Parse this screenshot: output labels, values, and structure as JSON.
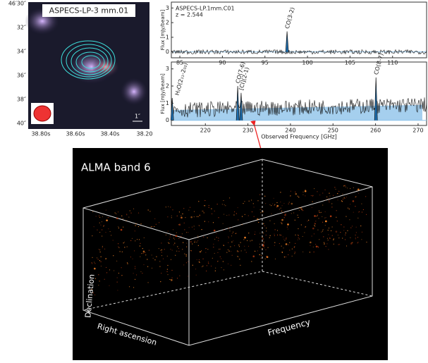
{
  "image_panel": {
    "label": "ASPECS-LP-3 mm.01",
    "dec_ticks": [
      "46′30″",
      "32″",
      "34″",
      "36″",
      "38″",
      "40″"
    ],
    "ra_ticks": [
      "38.80s",
      "38.60s",
      "38.40s",
      "38.20"
    ],
    "scale_label": "1″"
  },
  "spectrum_top": {
    "source": "ASPECS-LP.1mm.C01",
    "redshift": "z = 2.544",
    "ylabel": "Flux [mJy/beam]",
    "xlim": [
      84,
      114
    ],
    "ylim": [
      -0.4,
      3.4
    ],
    "xticks": [
      85,
      90,
      95,
      100,
      105,
      110
    ],
    "yticks": [
      0,
      1,
      2,
      3
    ],
    "lines": [
      {
        "label": "CO(3-2)",
        "x": 97.6,
        "peak": 1.4
      }
    ]
  },
  "spectrum_bottom": {
    "ylabel": "Flux [mJy/beam]",
    "xlabel": "Observed Frequency [GHz]",
    "xlim": [
      212,
      272
    ],
    "ylim": [
      -0.3,
      3.4
    ],
    "xticks": [
      220,
      230,
      240,
      250,
      260,
      270
    ],
    "yticks": [
      0,
      1,
      2,
      3
    ],
    "continuum": {
      "x": [
        212,
        271
      ],
      "y": [
        0.6,
        0.9
      ]
    },
    "lines": [
      {
        "label": "H₂O(2₁₁-2₀₂)",
        "x": 212.2,
        "peak": 1.3
      },
      {
        "label": "CO(7-6)",
        "x": 227.6,
        "peak": 2.0
      },
      {
        "label": "[CI](2-1)",
        "x": 228.4,
        "peak": 1.6
      },
      {
        "label": "CO(8-7)",
        "x": 260.1,
        "peak": 2.5
      }
    ]
  },
  "cube": {
    "title": "ALMA band 6",
    "axis_dec": "Declination",
    "axis_ra": "Right ascension",
    "axis_freq": "Frequency"
  }
}
